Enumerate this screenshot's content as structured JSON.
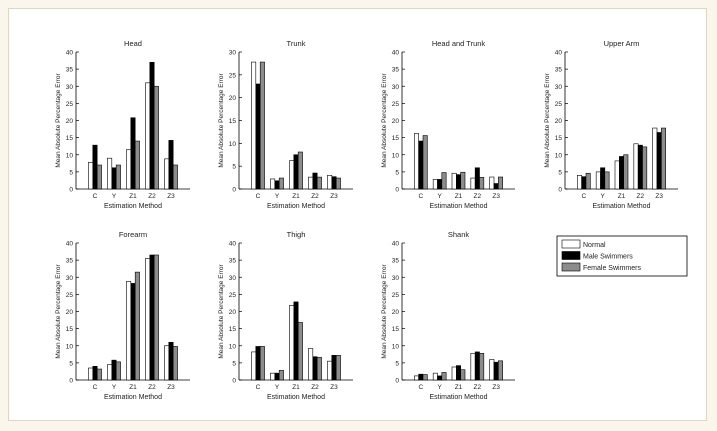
{
  "legend": {
    "entries": [
      "Normal",
      "Male Swimmers",
      "Female Swimmers"
    ],
    "placement": "bottom-right",
    "colors": [
      "#ffffff",
      "#000000",
      "#8c8c8c"
    ]
  },
  "chart_data": [
    {
      "type": "bar",
      "title": "Head",
      "xlabel": "Estimation Method",
      "ylabel": "Mean Absolute Percentage Error",
      "categories": [
        "C",
        "Y",
        "Z1",
        "Z2",
        "Z3"
      ],
      "ylim": [
        0,
        40
      ],
      "yticks": [
        0,
        5,
        10,
        15,
        20,
        25,
        30,
        35,
        40
      ],
      "series": [
        {
          "name": "Normal",
          "values": [
            7.8,
            9,
            11.5,
            31,
            8.8
          ]
        },
        {
          "name": "Male Swimmers",
          "values": [
            12.8,
            6.2,
            20.8,
            37,
            14.2
          ]
        },
        {
          "name": "Female Swimmers",
          "values": [
            7,
            7,
            14,
            30,
            7
          ]
        }
      ]
    },
    {
      "type": "bar",
      "title": "Trunk",
      "xlabel": "Estimation Method",
      "ylabel": "Mean Absolute Percentage Error",
      "categories": [
        "C",
        "Y",
        "Z1",
        "Z2",
        "Z3"
      ],
      "ylim": [
        0,
        30
      ],
      "yticks": [
        0,
        5,
        10,
        15,
        20,
        25,
        30
      ],
      "series": [
        {
          "name": "Normal",
          "values": [
            27.8,
            2.2,
            6.2,
            2.6,
            3
          ]
        },
        {
          "name": "Male Swimmers",
          "values": [
            23,
            1.8,
            7.5,
            3.5,
            2.7
          ]
        },
        {
          "name": "Female Swimmers",
          "values": [
            27.8,
            2.4,
            8.1,
            2.6,
            2.4
          ]
        }
      ]
    },
    {
      "type": "bar",
      "title": "Head and Trunk",
      "xlabel": "Estimation Method",
      "ylabel": "Mean Absolute Percentage Error",
      "categories": [
        "C",
        "Y",
        "Z1",
        "Z2",
        "Z3"
      ],
      "ylim": [
        0,
        40
      ],
      "yticks": [
        0,
        5,
        10,
        15,
        20,
        25,
        30,
        35,
        40
      ],
      "series": [
        {
          "name": "Normal",
          "values": [
            16.2,
            2.8,
            4.6,
            3.2,
            3.5
          ]
        },
        {
          "name": "Male Swimmers",
          "values": [
            14,
            2.8,
            4.2,
            6.2,
            1.6
          ]
        },
        {
          "name": "Female Swimmers",
          "values": [
            15.6,
            4.8,
            4.9,
            3.4,
            3.5
          ]
        }
      ]
    },
    {
      "type": "bar",
      "title": "Upper Arm",
      "xlabel": "Estimation Method",
      "ylabel": "Mean Absolute Percentage Error",
      "categories": [
        "C",
        "Y",
        "Z1",
        "Z2",
        "Z3"
      ],
      "ylim": [
        0,
        40
      ],
      "yticks": [
        0,
        5,
        10,
        15,
        20,
        25,
        30,
        35,
        40
      ],
      "series": [
        {
          "name": "Normal",
          "values": [
            4,
            5,
            8.2,
            13.2,
            17.8
          ]
        },
        {
          "name": "Male Swimmers",
          "values": [
            3.6,
            6.2,
            9.5,
            12.8,
            16.5
          ]
        },
        {
          "name": "Female Swimmers",
          "values": [
            4.6,
            5,
            10,
            12.3,
            17.8
          ]
        }
      ]
    },
    {
      "type": "bar",
      "title": "Forearm",
      "xlabel": "Estimation Method",
      "ylabel": "Mean Absolute Percentage Error",
      "categories": [
        "C",
        "Y",
        "Z1",
        "Z2",
        "Z3"
      ],
      "ylim": [
        0,
        40
      ],
      "yticks": [
        0,
        5,
        10,
        15,
        20,
        25,
        30,
        35,
        40
      ],
      "series": [
        {
          "name": "Normal",
          "values": [
            3.5,
            4.5,
            28.8,
            35.5,
            10
          ]
        },
        {
          "name": "Male Swimmers",
          "values": [
            4,
            5.8,
            28.2,
            36.5,
            11
          ]
        },
        {
          "name": "Female Swimmers",
          "values": [
            3.2,
            5.3,
            31.5,
            36.5,
            9.8
          ]
        }
      ]
    },
    {
      "type": "bar",
      "title": "Thigh",
      "xlabel": "Estimation Method",
      "ylabel": "Mean Absolute Percentage Error",
      "categories": [
        "C",
        "Y",
        "Z1",
        "Z2",
        "Z3"
      ],
      "ylim": [
        0,
        40
      ],
      "yticks": [
        0,
        5,
        10,
        15,
        20,
        25,
        30,
        35,
        40
      ],
      "series": [
        {
          "name": "Normal",
          "values": [
            8.2,
            2,
            21.8,
            9.2,
            5.5
          ]
        },
        {
          "name": "Male Swimmers",
          "values": [
            9.8,
            2,
            22.8,
            6.8,
            7.2
          ]
        },
        {
          "name": "Female Swimmers",
          "values": [
            9.8,
            2.8,
            16.8,
            6.6,
            7.2
          ]
        }
      ]
    },
    {
      "type": "bar",
      "title": "Shank",
      "xlabel": "Estimation Method",
      "ylabel": "Mean Absolute Percentage Error",
      "categories": [
        "C",
        "Y",
        "Z1",
        "Z2",
        "Z3"
      ],
      "ylim": [
        0,
        40
      ],
      "yticks": [
        0,
        5,
        10,
        15,
        20,
        25,
        30,
        35,
        40
      ],
      "series": [
        {
          "name": "Normal",
          "values": [
            1.2,
            2,
            3.8,
            7.8,
            6
          ]
        },
        {
          "name": "Male Swimmers",
          "values": [
            1.7,
            1.2,
            4.2,
            8.2,
            5.2
          ]
        },
        {
          "name": "Female Swimmers",
          "values": [
            1.6,
            2.2,
            3,
            7.8,
            5.6
          ]
        }
      ]
    }
  ]
}
